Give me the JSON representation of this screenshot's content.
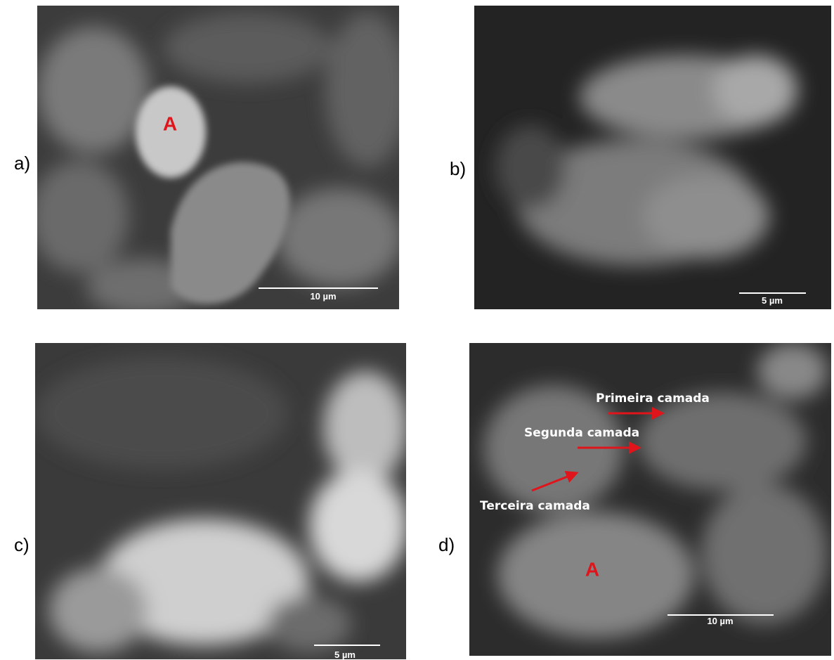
{
  "panels": [
    {
      "label": "a)",
      "scale_bar": "10 µm",
      "annotations": [
        "A"
      ]
    },
    {
      "label": "b)",
      "scale_bar": "5 µm"
    },
    {
      "label": "c)",
      "scale_bar": "5 µm"
    },
    {
      "label": "d)",
      "scale_bar": "10 µm",
      "annotations": [
        "Primeira camada",
        "Segunda camada",
        "Terceira camada",
        "A"
      ]
    }
  ]
}
